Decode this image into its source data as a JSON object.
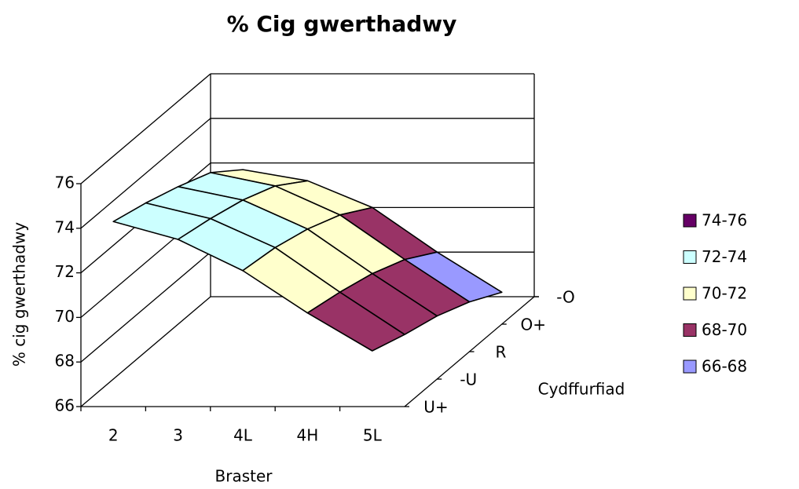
{
  "chart_data": {
    "type": "surface",
    "title": "% Cig gwerthadwy",
    "y_label": "% cig gwerthadwy",
    "x_label": "Braster",
    "depth_label": "Cydffurfiad",
    "categories": [
      "2",
      "3",
      "4L",
      "4H",
      "5L"
    ],
    "depth_categories": [
      "U+",
      "-U",
      "R",
      "O+",
      "-O"
    ],
    "values": [
      [
        74.3,
        73.5,
        72.1,
        70.2,
        68.5
      ],
      [
        73.9,
        73.2,
        71.9,
        69.9,
        68.0
      ],
      [
        73.4,
        72.8,
        71.5,
        69.5,
        67.6
      ],
      [
        72.8,
        72.2,
        70.9,
        68.9,
        67.0
      ],
      [
        71.7,
        71.2,
        70.0,
        68.0,
        66.2
      ]
    ],
    "ylim": [
      66,
      76
    ],
    "yticks": [
      66,
      68,
      70,
      72,
      74,
      76
    ],
    "bands": [
      {
        "name": "74-76",
        "color": "#660066",
        "range": [
          74,
          76
        ]
      },
      {
        "name": "72-74",
        "color": "#ccffff",
        "range": [
          72,
          74
        ]
      },
      {
        "name": "70-72",
        "color": "#ffffcc",
        "range": [
          70,
          72
        ]
      },
      {
        "name": "68-70",
        "color": "#993366",
        "range": [
          68,
          70
        ]
      },
      {
        "name": "66-68",
        "color": "#9999ff",
        "range": [
          66,
          68
        ]
      }
    ],
    "legend": "right"
  }
}
